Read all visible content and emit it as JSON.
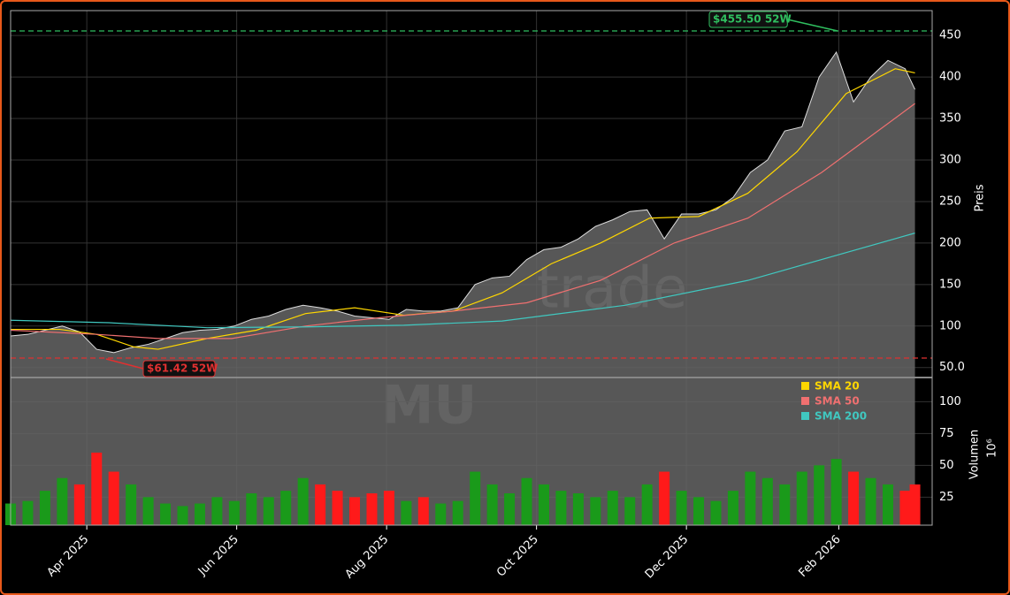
{
  "chart_data": {
    "type": "stock",
    "watermark": "MU",
    "watermark2": "trade",
    "x": [
      0,
      7,
      14,
      21,
      28,
      35,
      42,
      49,
      56,
      63,
      70,
      77,
      84,
      91,
      98,
      105,
      112,
      119,
      126,
      133,
      140,
      147,
      154,
      161,
      168,
      175,
      182,
      189,
      196,
      203,
      210,
      217,
      224,
      231,
      238,
      245,
      252,
      259,
      266,
      273,
      280,
      287,
      294,
      301,
      308,
      315,
      322,
      329,
      336,
      343,
      350,
      357,
      364,
      368
    ],
    "close": {
      "name": "Preis",
      "color": "#666666",
      "values": [
        88,
        90,
        95,
        100,
        93,
        72,
        68,
        74,
        78,
        85,
        92,
        95,
        96,
        100,
        108,
        112,
        120,
        125,
        122,
        118,
        112,
        110,
        108,
        120,
        118,
        118,
        122,
        150,
        158,
        160,
        180,
        192,
        195,
        205,
        220,
        228,
        238,
        240,
        205,
        235,
        235,
        240,
        255,
        285,
        300,
        335,
        340,
        400,
        430,
        370,
        400,
        420,
        410,
        385
      ]
    },
    "volume": {
      "values": [
        20,
        22,
        30,
        40,
        35,
        60,
        45,
        35,
        25,
        20,
        18,
        20,
        25,
        22,
        28,
        25,
        30,
        40,
        35,
        30,
        25,
        28,
        30,
        22,
        25,
        20,
        22,
        45,
        35,
        28,
        40,
        35,
        30,
        28,
        25,
        30,
        25,
        35,
        45,
        30,
        25,
        22,
        30,
        45,
        40,
        35,
        45,
        50,
        55,
        45,
        40,
        35,
        30,
        35
      ],
      "up_color": "#1a9a1a",
      "down_color": "#ff1a1a"
    },
    "sma": [
      {
        "name": "SMA 20",
        "color": "#ffd700",
        "x": [
          0,
          20,
          35,
          50,
          60,
          80,
          100,
          120,
          140,
          160,
          180,
          200,
          220,
          240,
          260,
          280,
          300,
          320,
          340,
          360,
          368
        ],
        "values": [
          96,
          96,
          90,
          75,
          72,
          85,
          95,
          115,
          122,
          113,
          118,
          140,
          175,
          200,
          230,
          232,
          260,
          310,
          380,
          410,
          405
        ]
      },
      {
        "name": "SMA 50",
        "color": "#f07070",
        "x": [
          0,
          35,
          60,
          90,
          120,
          150,
          180,
          210,
          240,
          270,
          300,
          330,
          368
        ],
        "values": [
          95,
          90,
          85,
          85,
          100,
          110,
          118,
          128,
          155,
          200,
          230,
          285,
          368
        ]
      },
      {
        "name": "SMA 200",
        "color": "#40c8c0",
        "x": [
          0,
          40,
          80,
          120,
          160,
          200,
          250,
          300,
          368
        ],
        "values": [
          107,
          104,
          98,
          99,
          101,
          106,
          125,
          155,
          212
        ]
      }
    ],
    "high_52w": {
      "value": 455.5,
      "label": "$455.50 52W",
      "color": "#2fbf5f"
    },
    "low_52w": {
      "value": 61.42,
      "label": "$61.42 52W",
      "color": "#e03030"
    },
    "xlim": [
      0,
      375
    ],
    "xticks": [
      {
        "value": 31,
        "label": "Apr 2025"
      },
      {
        "value": 92,
        "label": "Jun 2025"
      },
      {
        "value": 153,
        "label": "Aug 2025"
      },
      {
        "value": 214,
        "label": "Oct 2025"
      },
      {
        "value": 275,
        "label": "Dec 2025"
      },
      {
        "value": 337,
        "label": "Feb 2026"
      }
    ],
    "ylim": [
      38,
      480
    ],
    "yticks": [
      {
        "value": 50,
        "label": "50.0"
      },
      100,
      150,
      200,
      250,
      300,
      350,
      400,
      450
    ],
    "ylabel": "Preis",
    "vol_ylim": [
      3,
      119
    ],
    "vol_yticks": [
      25,
      50,
      75,
      100
    ],
    "vol_ylabel": "Volumen",
    "vol_unit": "10⁶",
    "grid": true
  }
}
